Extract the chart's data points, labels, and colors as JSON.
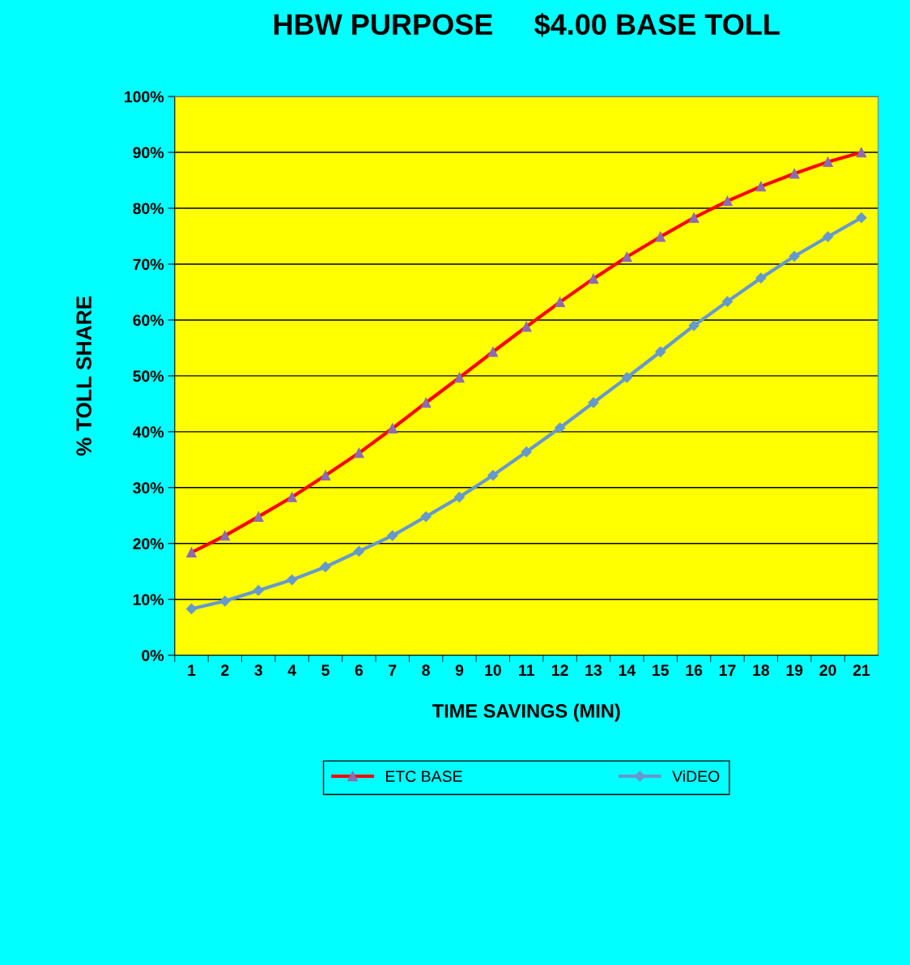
{
  "chart_data": {
    "type": "line",
    "title": "HBW PURPOSE     $4.00 BASE TOLL",
    "xlabel": "TIME SAVINGS (MIN)",
    "ylabel": "% TOLL SHARE",
    "categories": [
      "1",
      "2",
      "3",
      "4",
      "5",
      "6",
      "7",
      "8",
      "9",
      "10",
      "11",
      "12",
      "13",
      "14",
      "15",
      "16",
      "17",
      "18",
      "19",
      "20",
      "21"
    ],
    "series": [
      {
        "name": "ETC BASE",
        "color": "#ff0000",
        "marker": "triangle",
        "values": [
          18.4,
          21.4,
          24.8,
          28.3,
          32.2,
          36.2,
          40.6,
          45.2,
          49.7,
          54.3,
          58.8,
          63.2,
          67.4,
          71.3,
          74.9,
          78.3,
          81.3,
          83.9,
          86.2,
          88.3,
          90.0
        ]
      },
      {
        "name": "ViDEO",
        "color": "#6699cc",
        "marker": "diamond",
        "values": [
          8.3,
          9.7,
          11.6,
          13.5,
          15.8,
          18.6,
          21.4,
          24.8,
          28.3,
          32.2,
          36.4,
          40.7,
          45.2,
          49.7,
          54.3,
          59.0,
          63.3,
          67.5,
          71.4,
          74.9,
          78.3
        ]
      }
    ],
    "ylim": [
      0,
      100
    ],
    "yticks": [
      {
        "value": 0,
        "label": "0%"
      },
      {
        "value": 10,
        "label": "10%"
      },
      {
        "value": 20,
        "label": "20%"
      },
      {
        "value": 30,
        "label": "30%"
      },
      {
        "value": 40,
        "label": "40%"
      },
      {
        "value": 50,
        "label": "50%"
      },
      {
        "value": 60,
        "label": "60%"
      },
      {
        "value": 70,
        "label": "70%"
      },
      {
        "value": 80,
        "label": "80%"
      },
      {
        "value": 90,
        "label": "90%"
      },
      {
        "value": 100,
        "label": "100%"
      }
    ],
    "grid": "y",
    "legend": "bottom",
    "line_style": "solid"
  }
}
